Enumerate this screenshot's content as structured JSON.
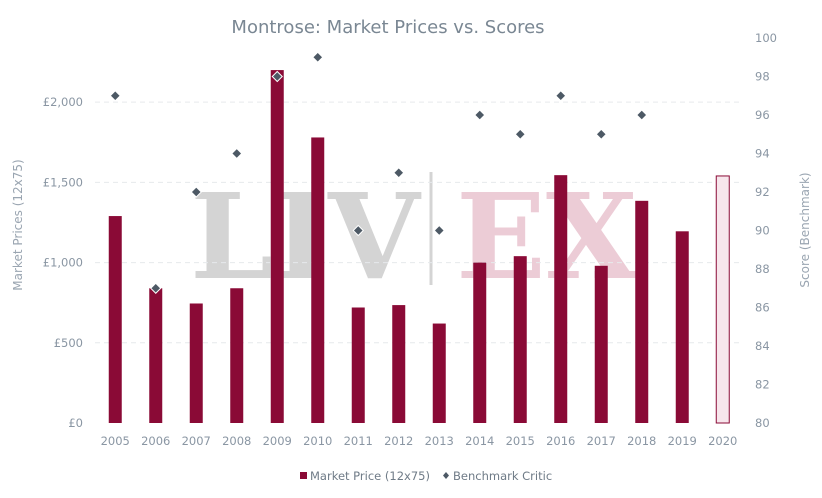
{
  "colors": {
    "bar": "#8a0a36",
    "bar_estimate_fill": "#f7e6ec",
    "marker": "#4d5965",
    "title": "#7a8793"
  },
  "watermark": {
    "left": "LIV",
    "right": "EX"
  },
  "chart_data": {
    "type": "bar",
    "title": "Montrose: Market Prices vs. Scores",
    "ylabel": "Market Prices (12x75)",
    "y2label": "Score (Benchmark)",
    "categories": [
      "2005",
      "2006",
      "2007",
      "2008",
      "2009",
      "2010",
      "2011",
      "2012",
      "2013",
      "2014",
      "2015",
      "2016",
      "2017",
      "2018",
      "2019",
      "2020"
    ],
    "ylim": [
      0,
      2400
    ],
    "y2lim": [
      80,
      100
    ],
    "y_ticks": [
      0,
      500,
      1000,
      1500,
      2000
    ],
    "y_tick_labels": [
      "£0",
      "£500",
      "£1,000",
      "£1,500",
      "£2,000"
    ],
    "y2_ticks": [
      80,
      82,
      84,
      86,
      88,
      90,
      92,
      94,
      96,
      98,
      100
    ],
    "series": [
      {
        "name": "Market Price (12x75)",
        "type": "bar",
        "axis": "left",
        "values": [
          1290,
          840,
          745,
          840,
          2200,
          1780,
          720,
          735,
          620,
          1000,
          1040,
          1545,
          980,
          1385,
          1195,
          1540
        ],
        "estimated_indices": [
          15
        ]
      },
      {
        "name": "Benchmark Critic",
        "type": "scatter",
        "axis": "right",
        "values": [
          97,
          87,
          92,
          94,
          98,
          99,
          90,
          93,
          90,
          96,
          95,
          97,
          95,
          96,
          null,
          null
        ]
      }
    ],
    "legend": "bottom-center",
    "grid": true
  }
}
